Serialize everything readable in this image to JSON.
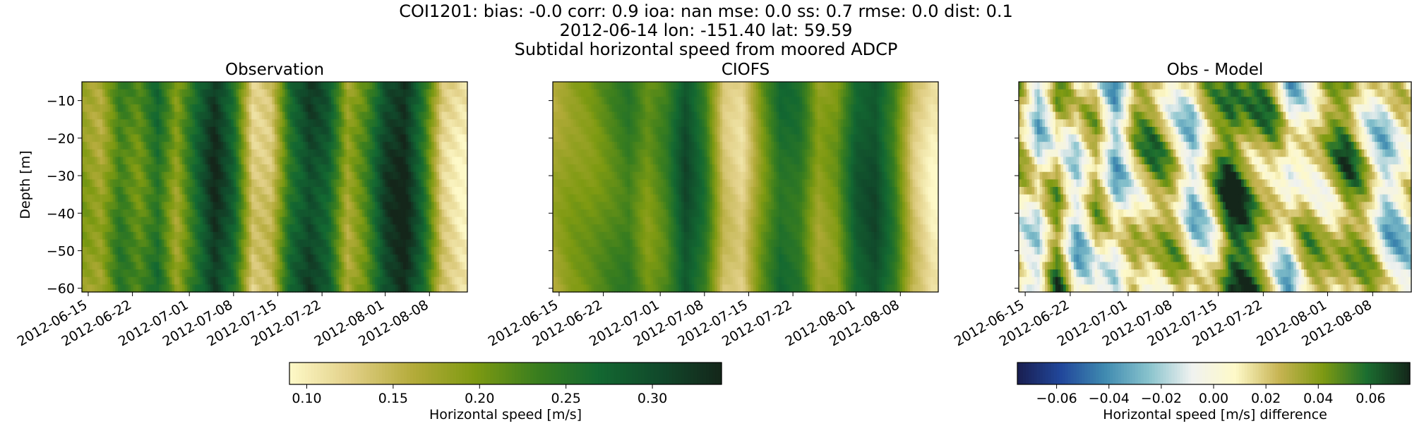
{
  "header": {
    "line1": "COI1201: bias: -0.0  corr: 0.9  ioa: nan  mse: 0.0  ss: 0.7  rmse: 0.0  dist: 0.1",
    "line2": "2012-06-14 lon: -151.40 lat: 59.59",
    "line3": "Subtidal horizontal speed from moored ADCP"
  },
  "chart_data": [
    {
      "type": "heatmap",
      "title": "Observation",
      "ylabel": "Depth [m]",
      "x_ticks": [
        "2012-06-15",
        "2012-06-22",
        "2012-07-01",
        "2012-07-08",
        "2012-07-15",
        "2012-07-22",
        "2012-08-01",
        "2012-08-08"
      ],
      "x_range": [
        "2012-06-14",
        "2012-08-14"
      ],
      "y_ticks": [
        -10,
        -20,
        -30,
        -40,
        -50,
        -60
      ],
      "ylim": [
        -61,
        -5
      ],
      "colormap": "speed",
      "clim": [
        0.09,
        0.34
      ],
      "colorbar": {
        "label": "Horizontal speed [m/s]",
        "ticks": [
          "0.10",
          "0.15",
          "0.20",
          "0.25",
          "0.30"
        ]
      },
      "time_profile": [
        {
          "date": "2012-06-14",
          "value": 0.19
        },
        {
          "date": "2012-06-17",
          "value": 0.17
        },
        {
          "date": "2012-06-20",
          "value": 0.24
        },
        {
          "date": "2012-06-23",
          "value": 0.21
        },
        {
          "date": "2012-06-26",
          "value": 0.26
        },
        {
          "date": "2012-06-29",
          "value": 0.18
        },
        {
          "date": "2012-07-02",
          "value": 0.26
        },
        {
          "date": "2012-07-05",
          "value": 0.33
        },
        {
          "date": "2012-07-08",
          "value": 0.27
        },
        {
          "date": "2012-07-11",
          "value": 0.13
        },
        {
          "date": "2012-07-14",
          "value": 0.14
        },
        {
          "date": "2012-07-17",
          "value": 0.26
        },
        {
          "date": "2012-07-20",
          "value": 0.31
        },
        {
          "date": "2012-07-23",
          "value": 0.28
        },
        {
          "date": "2012-07-26",
          "value": 0.17
        },
        {
          "date": "2012-07-29",
          "value": 0.22
        },
        {
          "date": "2012-08-01",
          "value": 0.31
        },
        {
          "date": "2012-08-04",
          "value": 0.34
        },
        {
          "date": "2012-08-07",
          "value": 0.26
        },
        {
          "date": "2012-08-10",
          "value": 0.13
        },
        {
          "date": "2012-08-13",
          "value": 0.1
        }
      ]
    },
    {
      "type": "heatmap",
      "title": "CIOFS",
      "x_ticks": [
        "2012-06-15",
        "2012-06-22",
        "2012-07-01",
        "2012-07-08",
        "2012-07-15",
        "2012-07-22",
        "2012-08-01",
        "2012-08-08"
      ],
      "x_range": [
        "2012-06-14",
        "2012-08-14"
      ],
      "y_ticks": [
        -10,
        -20,
        -30,
        -40,
        -50,
        -60
      ],
      "ylim": [
        -61,
        -5
      ],
      "colormap": "speed",
      "clim": [
        0.09,
        0.34
      ],
      "time_profile": [
        {
          "date": "2012-06-14",
          "value": 0.17
        },
        {
          "date": "2012-06-17",
          "value": 0.19
        },
        {
          "date": "2012-06-20",
          "value": 0.2
        },
        {
          "date": "2012-06-23",
          "value": 0.22
        },
        {
          "date": "2012-06-26",
          "value": 0.24
        },
        {
          "date": "2012-06-29",
          "value": 0.2
        },
        {
          "date": "2012-07-02",
          "value": 0.23
        },
        {
          "date": "2012-07-05",
          "value": 0.3
        },
        {
          "date": "2012-07-08",
          "value": 0.25
        },
        {
          "date": "2012-07-11",
          "value": 0.14
        },
        {
          "date": "2012-07-14",
          "value": 0.12
        },
        {
          "date": "2012-07-17",
          "value": 0.2
        },
        {
          "date": "2012-07-20",
          "value": 0.26
        },
        {
          "date": "2012-07-23",
          "value": 0.25
        },
        {
          "date": "2012-07-26",
          "value": 0.18
        },
        {
          "date": "2012-07-29",
          "value": 0.2
        },
        {
          "date": "2012-08-01",
          "value": 0.28
        },
        {
          "date": "2012-08-04",
          "value": 0.3
        },
        {
          "date": "2012-08-07",
          "value": 0.24
        },
        {
          "date": "2012-08-10",
          "value": 0.14
        },
        {
          "date": "2012-08-13",
          "value": 0.1
        }
      ]
    },
    {
      "type": "heatmap",
      "title": "Obs - Model",
      "x_ticks": [
        "2012-06-15",
        "2012-06-22",
        "2012-07-01",
        "2012-07-08",
        "2012-07-15",
        "2012-07-22",
        "2012-08-01",
        "2012-08-08"
      ],
      "x_range": [
        "2012-06-14",
        "2012-08-14"
      ],
      "y_ticks": [
        -10,
        -20,
        -30,
        -40,
        -50,
        -60
      ],
      "ylim": [
        -61,
        -5
      ],
      "colormap": "diff",
      "clim": [
        -0.075,
        0.075
      ],
      "colorbar": {
        "label": "Horizontal speed [m/s] difference",
        "ticks": [
          "−0.06",
          "−0.04",
          "−0.02",
          "0.00",
          "0.02",
          "0.04",
          "0.06"
        ]
      }
    }
  ],
  "colors": {
    "speed": [
      "#fef9c8",
      "#e1cf86",
      "#b4ab3a",
      "#7e9a12",
      "#3a7e1e",
      "#136831",
      "#11492b",
      "#14261a"
    ],
    "diff": [
      "#191e50",
      "#21479b",
      "#3f8ab0",
      "#87c2cc",
      "#f0f2f0",
      "#fef9c8",
      "#c7b453",
      "#7e9a12",
      "#1b6e30",
      "#14261a"
    ]
  }
}
